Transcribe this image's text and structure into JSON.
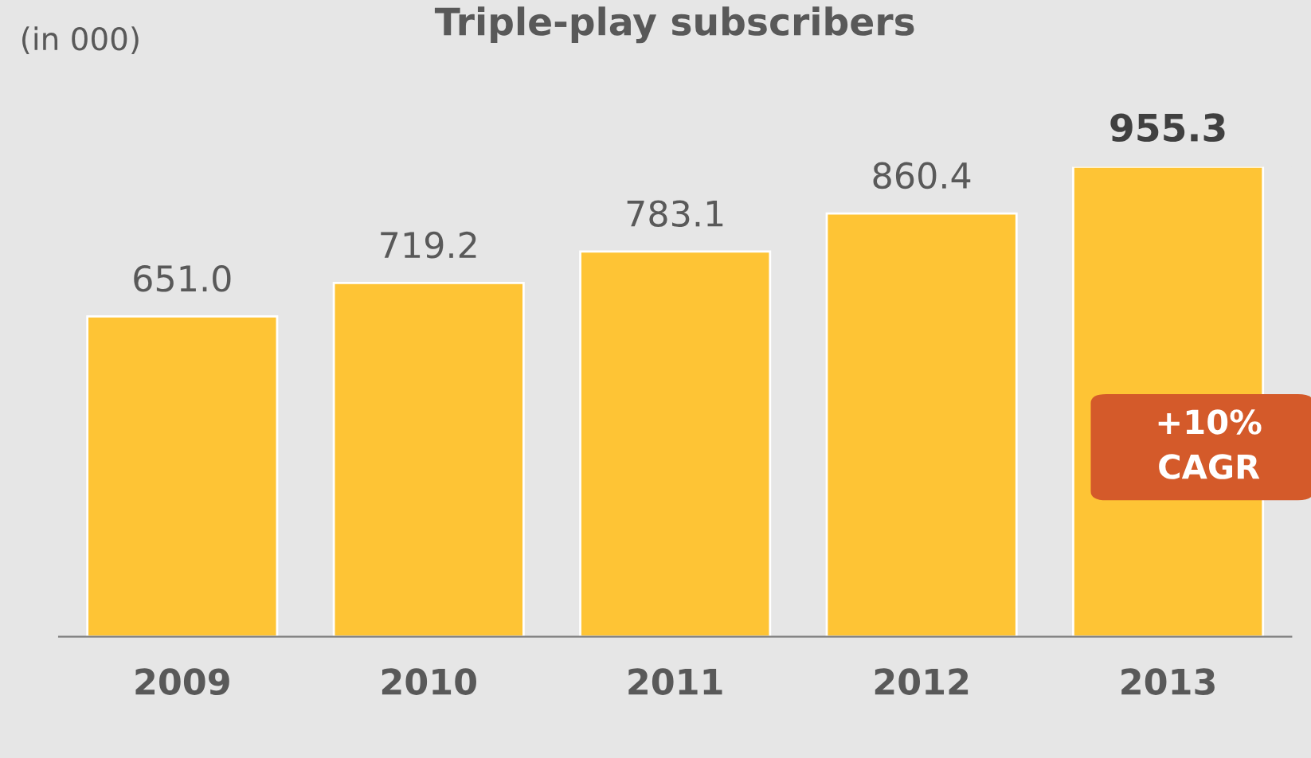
{
  "chart_data": {
    "type": "bar",
    "title": "Triple-play subscribers",
    "categories": [
      "2009",
      "2010",
      "2011",
      "2012",
      "2013"
    ],
    "values": [
      651.0,
      719.2,
      783.1,
      860.4,
      955.3
    ],
    "value_labels": [
      "651.0",
      "719.2",
      "783.1",
      "860.4",
      "955.3"
    ],
    "color": "#fec435",
    "annotations": [
      "(in 000)",
      "+10%\nCAGR"
    ],
    "grid": false,
    "legend": false
  }
}
